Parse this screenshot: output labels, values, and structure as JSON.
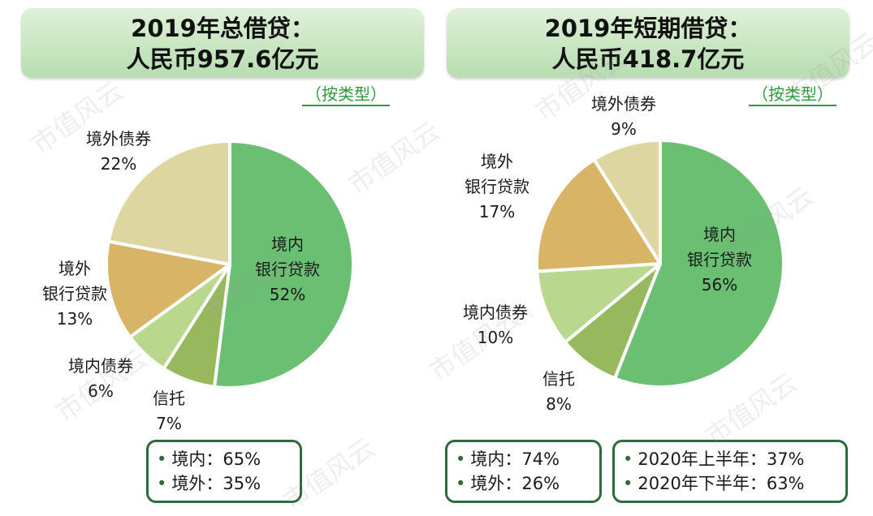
{
  "watermark": "市值风云",
  "panels": {
    "left": {
      "title_line1": "2019年总借贷：",
      "title_line2": "人民币957.6亿元",
      "type_tag": "（按类型）",
      "summary": [
        "境内：65%",
        "境外：35%"
      ]
    },
    "right": {
      "title_line1": "2019年短期借贷：",
      "title_line2": "人民币418.7亿元",
      "type_tag": "（按类型）",
      "summary_1": [
        "境内：74%",
        "境外：26%"
      ],
      "summary_2": [
        "2020年上半年：37%",
        "2020年下半年：63%"
      ]
    }
  },
  "colors": {
    "domestic_bank": "#6abf73",
    "trust": "#98b85d",
    "domestic_bond": "#b9d88e",
    "foreign_bank": "#d8b566",
    "foreign_bond": "#ddd6a0",
    "title_bg": "#c8e6c0",
    "border": "#2e6b3a"
  },
  "chart_data": [
    {
      "type": "pie",
      "title": "2019年总借贷：人民币957.6亿元",
      "slices": [
        {
          "label_lines": [
            "境内",
            "银行贷款"
          ],
          "value": 52,
          "color_key": "domestic_bank"
        },
        {
          "label_lines": [
            "信托"
          ],
          "value": 7,
          "color_key": "trust"
        },
        {
          "label_lines": [
            "境内债券"
          ],
          "value": 6,
          "color_key": "domestic_bond"
        },
        {
          "label_lines": [
            "境外",
            "银行贷款"
          ],
          "value": 13,
          "color_key": "foreign_bank"
        },
        {
          "label_lines": [
            "境外债券"
          ],
          "value": 22,
          "color_key": "foreign_bond"
        }
      ]
    },
    {
      "type": "pie",
      "title": "2019年短期借贷：人民币418.7亿元",
      "slices": [
        {
          "label_lines": [
            "境内",
            "银行贷款"
          ],
          "value": 56,
          "color_key": "domestic_bank"
        },
        {
          "label_lines": [
            "信托"
          ],
          "value": 8,
          "color_key": "trust"
        },
        {
          "label_lines": [
            "境内债券"
          ],
          "value": 10,
          "color_key": "domestic_bond"
        },
        {
          "label_lines": [
            "境外",
            "银行贷款"
          ],
          "value": 17,
          "color_key": "foreign_bank"
        },
        {
          "label_lines": [
            "境外债券"
          ],
          "value": 9,
          "color_key": "foreign_bond"
        }
      ]
    }
  ]
}
